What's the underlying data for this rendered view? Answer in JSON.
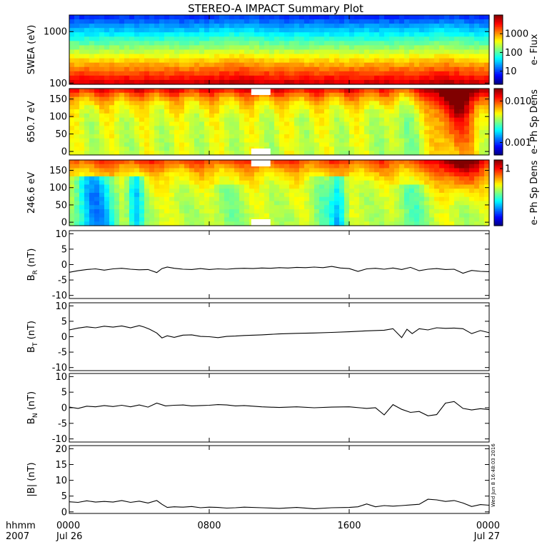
{
  "title": "STEREO-A IMPACT Summary Plot",
  "stamp": "Wed Jun  8 16:48:03 2016",
  "chart_data": [
    {
      "type": "heatmap",
      "ylabel": "SWEA (eV)",
      "colorbar_label": "e- Flux",
      "y_scale": "log",
      "ylim": [
        95,
        2100
      ],
      "y_ticks": [
        100,
        1000
      ],
      "y_tick_labels": [
        "100",
        "1000"
      ],
      "colorbar_scale": "log",
      "colorbar_range": [
        2,
        10000
      ],
      "colorbar_ticks": [
        10,
        100,
        1000
      ],
      "colorbar_tick_labels": [
        "10",
        "100",
        "1000"
      ]
    },
    {
      "type": "heatmap",
      "ylabel": "650.7 eV",
      "colorbar_label": "e- Ph Sp Dens",
      "ylim": [
        -10,
        180
      ],
      "y_ticks": [
        0,
        50,
        100,
        150
      ],
      "y_tick_labels": [
        "0",
        "50",
        "100",
        "150"
      ],
      "colorbar_scale": "log",
      "colorbar_range": [
        0.0005,
        0.02
      ],
      "colorbar_ticks": [
        0.001,
        0.01
      ],
      "colorbar_tick_labels": [
        "0.001",
        "0.010"
      ],
      "data_gap_hours": [
        10.4,
        11.5
      ]
    },
    {
      "type": "heatmap",
      "ylabel": "246.6 eV",
      "colorbar_label": "e- Ph Sp Dens",
      "ylim": [
        -10,
        180
      ],
      "y_ticks": [
        0,
        50,
        100,
        150
      ],
      "y_tick_labels": [
        "0",
        "50",
        "100",
        "150"
      ],
      "colorbar_range": [
        0,
        1.15
      ],
      "colorbar_ticks": [
        1
      ],
      "colorbar_tick_labels": [
        "1"
      ],
      "data_gap_hours": [
        10.4,
        11.5
      ]
    },
    {
      "type": "line",
      "ylabel_main": "B",
      "ylabel_sub": "R",
      "ylabel_units": " (nT)",
      "ylim": [
        -11,
        11
      ],
      "y_ticks": [
        -10,
        -5,
        0,
        5,
        10
      ],
      "y_tick_labels": [
        "-10",
        "-5",
        "0",
        "5",
        "10"
      ],
      "x": [
        0,
        0.5,
        1,
        1.5,
        2,
        2.5,
        3,
        3.5,
        4,
        4.5,
        5,
        5.3,
        5.6,
        6,
        6.5,
        7,
        7.5,
        8,
        8.5,
        9,
        9.5,
        10,
        10.5,
        11,
        11.5,
        12,
        12.5,
        13,
        13.5,
        14,
        14.5,
        15,
        15.5,
        16,
        16.5,
        17,
        17.5,
        18,
        18.5,
        19,
        19.5,
        20,
        20.5,
        21,
        21.5,
        22,
        22.5,
        23,
        23.5,
        24
      ],
      "y": [
        -2.5,
        -2,
        -1.6,
        -1.4,
        -1.8,
        -1.4,
        -1.2,
        -1.5,
        -1.7,
        -1.6,
        -2.6,
        -1.3,
        -0.8,
        -1.2,
        -1.5,
        -1.6,
        -1.3,
        -1.6,
        -1.4,
        -1.5,
        -1.3,
        -1.2,
        -1.3,
        -1.1,
        -1.2,
        -1.0,
        -1.1,
        -0.9,
        -1.0,
        -0.8,
        -1.0,
        -0.6,
        -1.1,
        -1.3,
        -2.2,
        -1.4,
        -1.2,
        -1.5,
        -1.1,
        -1.6,
        -0.9,
        -2.0,
        -1.5,
        -1.3,
        -1.6,
        -1.5,
        -2.8,
        -1.9,
        -2.2,
        -2.3
      ]
    },
    {
      "type": "line",
      "ylabel_main": "B",
      "ylabel_sub": "T",
      "ylabel_units": " (nT)",
      "ylim": [
        -11,
        11
      ],
      "y_ticks": [
        -10,
        -5,
        0,
        5,
        10
      ],
      "y_tick_labels": [
        "-10",
        "-5",
        "0",
        "5",
        "10"
      ],
      "x": [
        0,
        0.5,
        1,
        1.5,
        2,
        2.5,
        3,
        3.5,
        4,
        4.3,
        4.6,
        5,
        5.3,
        5.6,
        6,
        6.5,
        7,
        7.5,
        8,
        8.5,
        9,
        9.5,
        10,
        11,
        12,
        13,
        14,
        15,
        16,
        17,
        18,
        18.5,
        19,
        19.3,
        19.6,
        20,
        20.5,
        21,
        21.5,
        22,
        22.5,
        23,
        23.5,
        24
      ],
      "y": [
        2.2,
        2.8,
        3.2,
        2.9,
        3.4,
        3.1,
        3.5,
        2.9,
        3.6,
        3.1,
        2.4,
        1.2,
        -0.4,
        0.3,
        -0.2,
        0.5,
        0.6,
        0.1,
        0.0,
        -0.3,
        0.1,
        0.2,
        0.4,
        0.6,
        0.9,
        1.1,
        1.2,
        1.4,
        1.6,
        1.9,
        2.1,
        2.6,
        -0.3,
        2.4,
        1.0,
        2.6,
        2.2,
        2.9,
        2.7,
        2.8,
        2.6,
        1.0,
        2.0,
        1.3
      ]
    },
    {
      "type": "line",
      "ylabel_main": "B",
      "ylabel_sub": "N",
      "ylabel_units": " (nT)",
      "ylim": [
        -11,
        11
      ],
      "y_ticks": [
        -10,
        -5,
        0,
        5,
        10
      ],
      "y_tick_labels": [
        "-10",
        "-5",
        "0",
        "5",
        "10"
      ],
      "x": [
        0,
        0.5,
        1,
        1.5,
        2,
        2.5,
        3,
        3.5,
        4,
        4.5,
        5,
        5.5,
        6,
        6.5,
        7,
        7.5,
        8,
        8.5,
        9,
        9.5,
        10,
        11,
        12,
        13,
        14,
        15,
        16,
        17,
        17.5,
        18,
        18.5,
        19,
        19.5,
        20,
        20.5,
        21,
        21.5,
        22,
        22.5,
        23,
        23.5,
        24
      ],
      "y": [
        0.2,
        -0.2,
        0.5,
        0.3,
        0.7,
        0.4,
        0.8,
        0.3,
        0.9,
        0.2,
        1.5,
        0.6,
        0.8,
        0.9,
        0.6,
        0.7,
        0.8,
        1.0,
        0.9,
        0.6,
        0.7,
        0.3,
        0.1,
        0.3,
        0.0,
        0.2,
        0.3,
        -0.2,
        0.0,
        -2.3,
        1.0,
        -0.5,
        -1.5,
        -1.2,
        -2.6,
        -2.2,
        1.5,
        2.0,
        -0.2,
        -0.7,
        -0.3,
        -0.6
      ]
    },
    {
      "type": "line",
      "ylabel_main": "|B|",
      "ylabel_sub": "",
      "ylabel_units": " (nT)",
      "ylim": [
        -0.5,
        21
      ],
      "y_ticks": [
        0,
        5,
        10,
        15,
        20
      ],
      "y_tick_labels": [
        "0",
        "5",
        "10",
        "15",
        "20"
      ],
      "x": [
        0,
        0.5,
        1,
        1.5,
        2,
        2.5,
        3,
        3.5,
        4,
        4.5,
        5,
        5.3,
        5.6,
        6,
        6.5,
        7,
        7.5,
        8,
        8.5,
        9,
        9.5,
        10,
        11,
        12,
        13,
        14,
        15,
        16,
        16.5,
        17,
        17.5,
        18,
        18.5,
        19,
        19.5,
        20,
        20.5,
        21,
        21.5,
        22,
        22.5,
        23,
        23.5,
        24
      ],
      "y": [
        3.2,
        3.0,
        3.5,
        3.1,
        3.3,
        3.1,
        3.6,
        3.0,
        3.4,
        2.8,
        3.6,
        2.4,
        1.4,
        1.6,
        1.5,
        1.7,
        1.3,
        1.5,
        1.4,
        1.2,
        1.3,
        1.5,
        1.3,
        1.1,
        1.4,
        1.0,
        1.3,
        1.4,
        1.6,
        2.5,
        1.6,
        2.0,
        1.8,
        2.0,
        2.2,
        2.4,
        4.0,
        3.8,
        3.3,
        3.6,
        2.8,
        1.7,
        2.3,
        2.1
      ]
    }
  ],
  "x_axis": {
    "range": [
      0,
      24
    ],
    "ticks": [
      0,
      8,
      16,
      24
    ],
    "tick_labels": [
      "0000",
      "0800",
      "1600",
      "0000"
    ],
    "date_labels": [
      "Jul 26",
      "",
      "",
      "Jul 27"
    ],
    "row_label_1": "hhmm",
    "row_label_2": "2007"
  }
}
